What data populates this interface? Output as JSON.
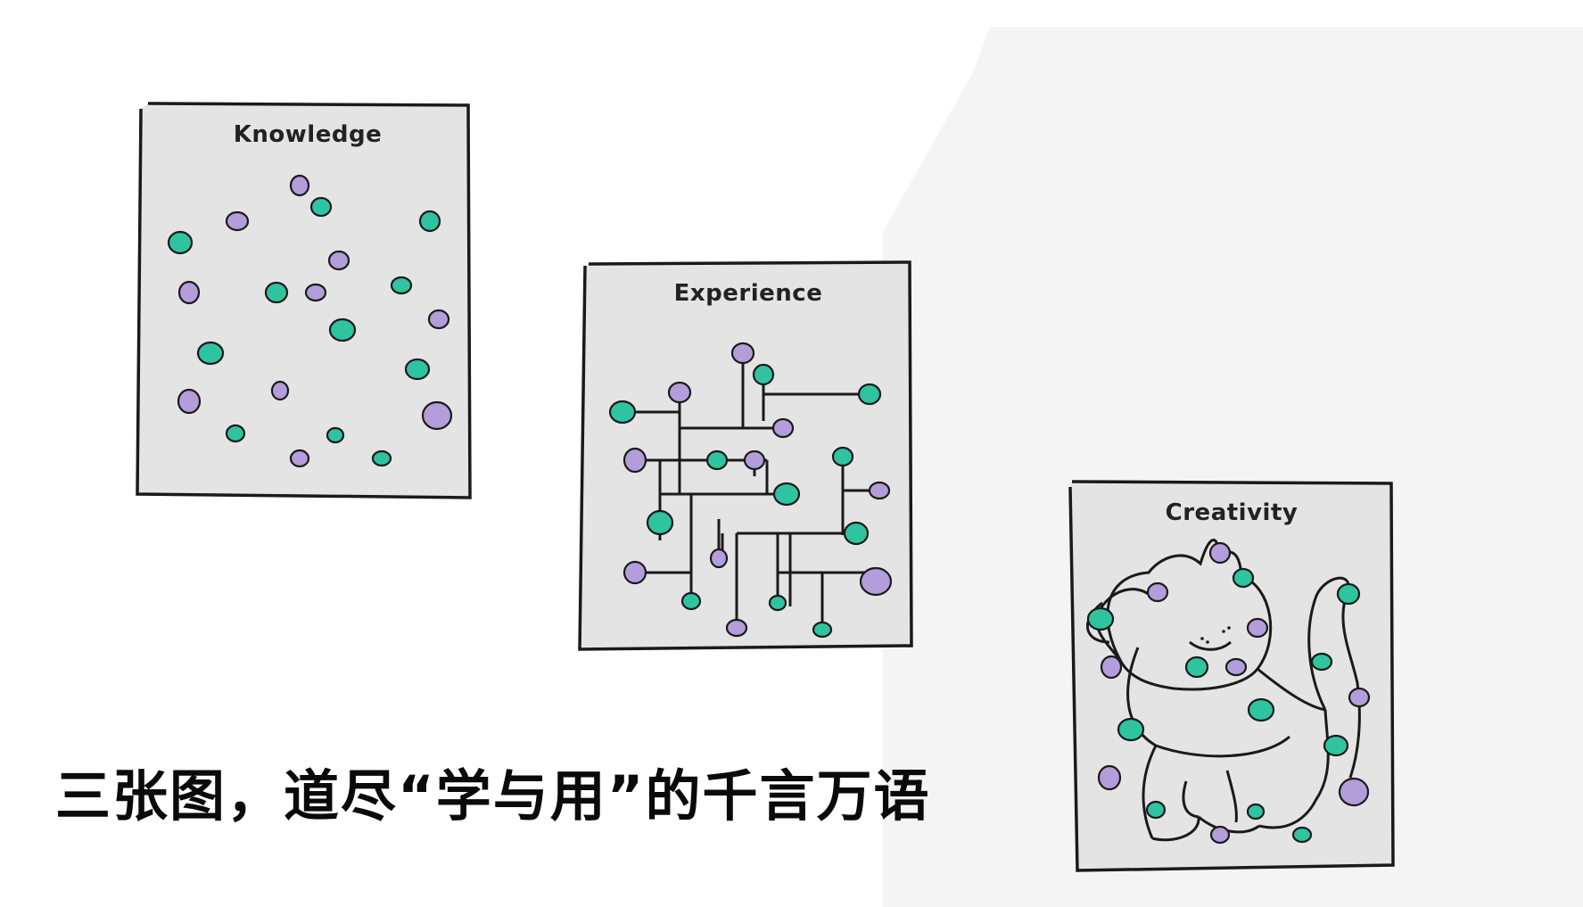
{
  "headline": "三张图，道尽“学与用”的千言万语",
  "cards": [
    {
      "title": "Knowledge"
    },
    {
      "title": "Experience"
    },
    {
      "title": "Creativity"
    }
  ],
  "colors": {
    "background": "#ffffff",
    "band": "#f4f4f4",
    "card_fill": "#e4e4e4",
    "ink": "#1a1a1a",
    "dot_green": "#2ec4a0",
    "dot_purple": "#b39ddb"
  }
}
